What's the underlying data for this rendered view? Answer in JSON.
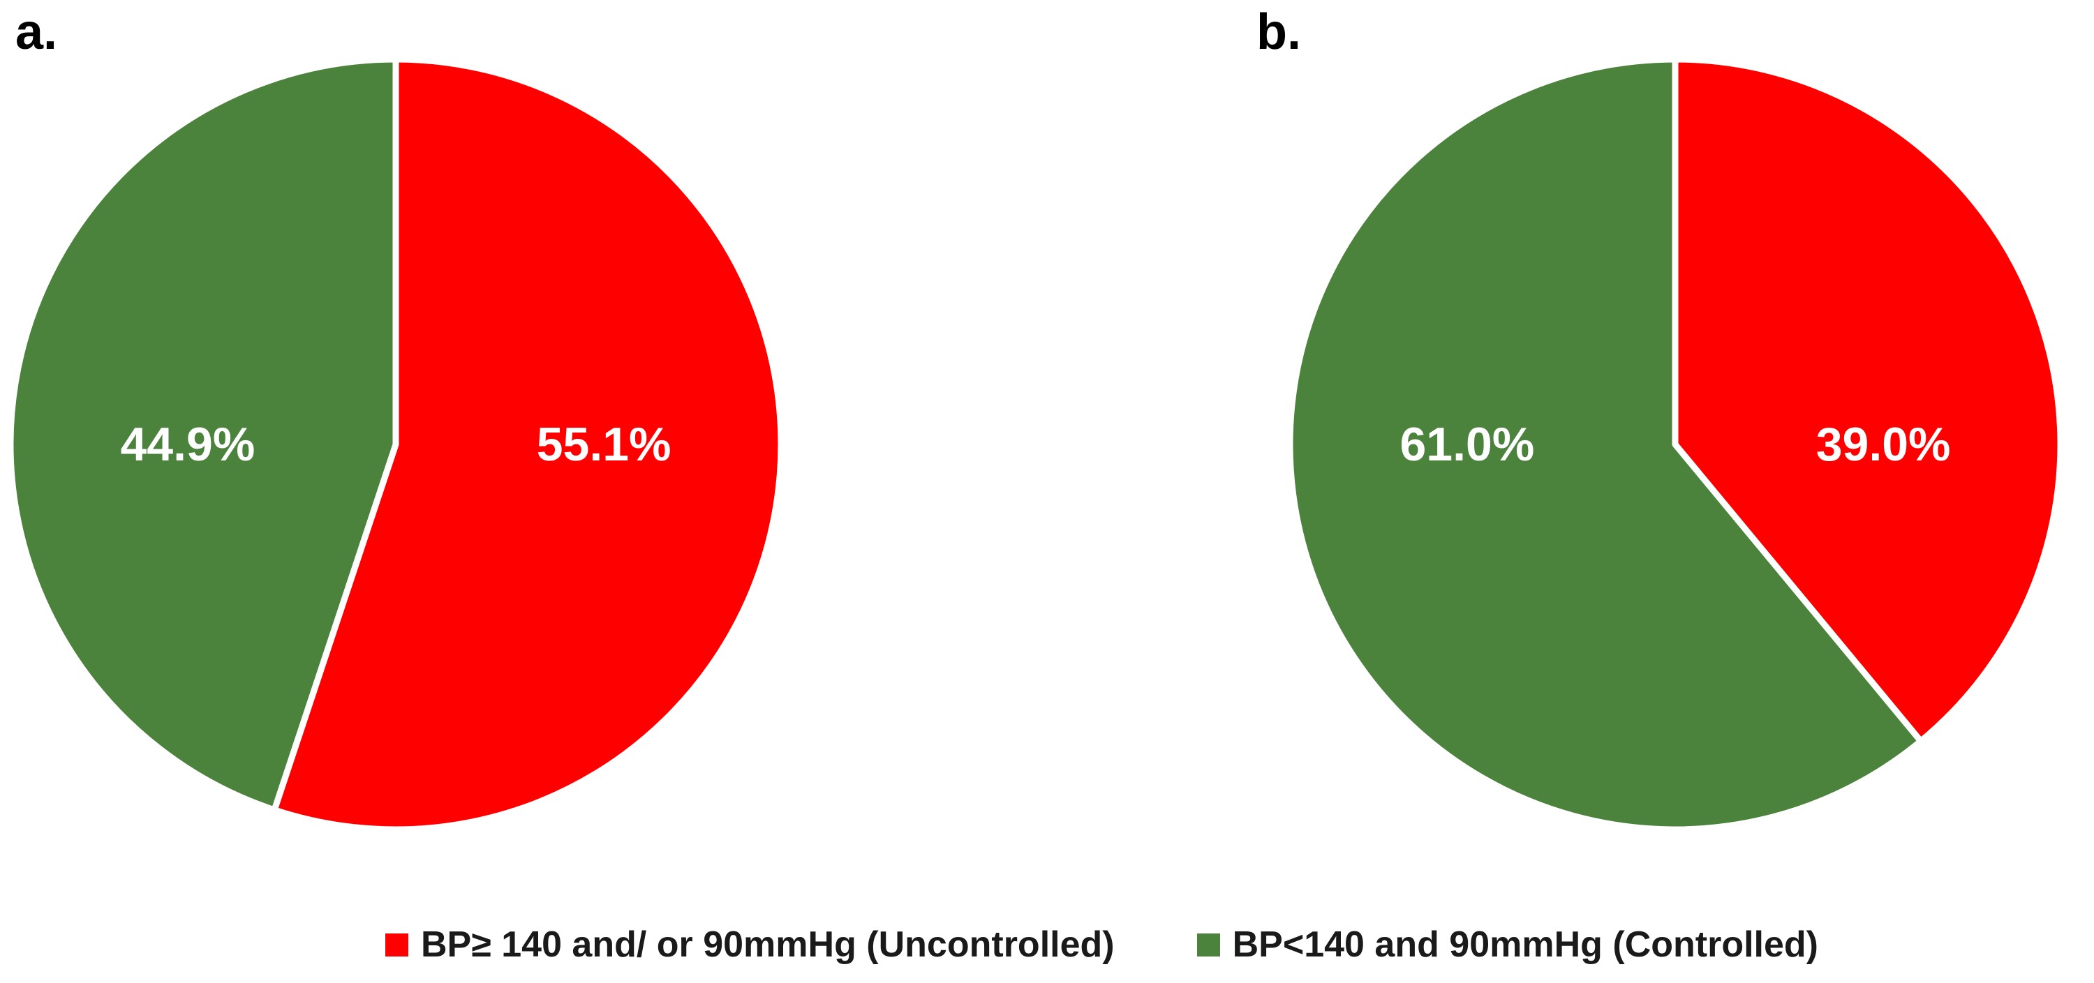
{
  "figure": {
    "background": "#ffffff",
    "panels": [
      {
        "label": "a."
      },
      {
        "label": "b."
      }
    ]
  },
  "colors": {
    "uncontrolled_red": "#ff0000",
    "controlled_green": "#4b823c",
    "slice_divider_white": "#ffffff",
    "slice_label_white": "#ffffff",
    "legend_text": "#1a1a1a"
  },
  "legend": {
    "position": "bottom-center",
    "items": [
      {
        "name": "uncontrolled",
        "label": "BP≥ 140 and/ or 90mmHg (Uncontrolled)",
        "color": "#ff0000"
      },
      {
        "name": "controlled",
        "label": "BP<140 and 90mmHg (Controlled)",
        "color": "#4b823c"
      }
    ]
  },
  "chart_data": [
    {
      "type": "pie",
      "panel": "a.",
      "start_angle_deg": 0,
      "direction": "clockwise",
      "units": "%",
      "slices": [
        {
          "series": "BP≥ 140 and/ or 90mmHg (Uncontrolled)",
          "value": 55.1,
          "label": "55.1%",
          "color": "#ff0000",
          "label_color": "#ffffff"
        },
        {
          "series": "BP<140 and 90mmHg (Controlled)",
          "value": 44.9,
          "label": "44.9%",
          "color": "#4b823c",
          "label_color": "#ffffff"
        }
      ]
    },
    {
      "type": "pie",
      "panel": "b.",
      "start_angle_deg": 0,
      "direction": "clockwise",
      "units": "%",
      "slices": [
        {
          "series": "BP≥ 140 and/ or 90mmHg (Uncontrolled)",
          "value": 39.0,
          "label": "39.0%",
          "color": "#ff0000",
          "label_color": "#ffffff"
        },
        {
          "series": "BP<140 and 90mmHg (Controlled)",
          "value": 61.0,
          "label": "61.0%",
          "color": "#4b823c",
          "label_color": "#ffffff"
        }
      ]
    }
  ]
}
